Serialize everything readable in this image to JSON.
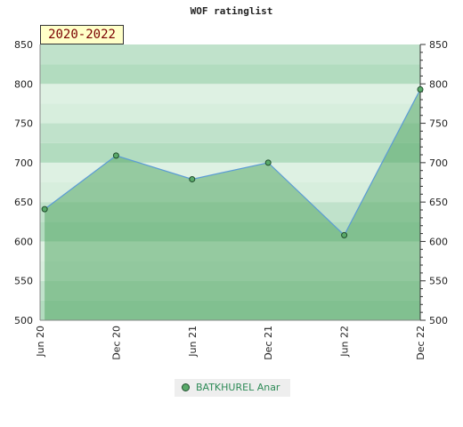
{
  "chart_data": {
    "type": "area",
    "title": "WOF ratinglist",
    "period_label": "2020-2022",
    "categories": [
      "Jun 20",
      "Dec 20",
      "Jun 21",
      "Dec 21",
      "Jun 22",
      "Dec 22"
    ],
    "series": [
      {
        "name": "BATKHUREL Anar",
        "x": [
          0.06,
          1,
          2,
          3,
          4,
          5
        ],
        "values": [
          641,
          709,
          679,
          700,
          608,
          793
        ]
      }
    ],
    "ylim": [
      500,
      850
    ],
    "y_ticks": [
      500,
      550,
      600,
      650,
      700,
      750,
      800,
      850
    ],
    "xlabel": "",
    "ylabel": "",
    "grid": true,
    "legend_position": "bottom-center",
    "colors": {
      "line": "#5b9bd5",
      "marker": "#5aaa6a",
      "area": "#5aaa6a",
      "band_dark": "#b2dcbf",
      "band_light": "#d7eedd"
    }
  }
}
